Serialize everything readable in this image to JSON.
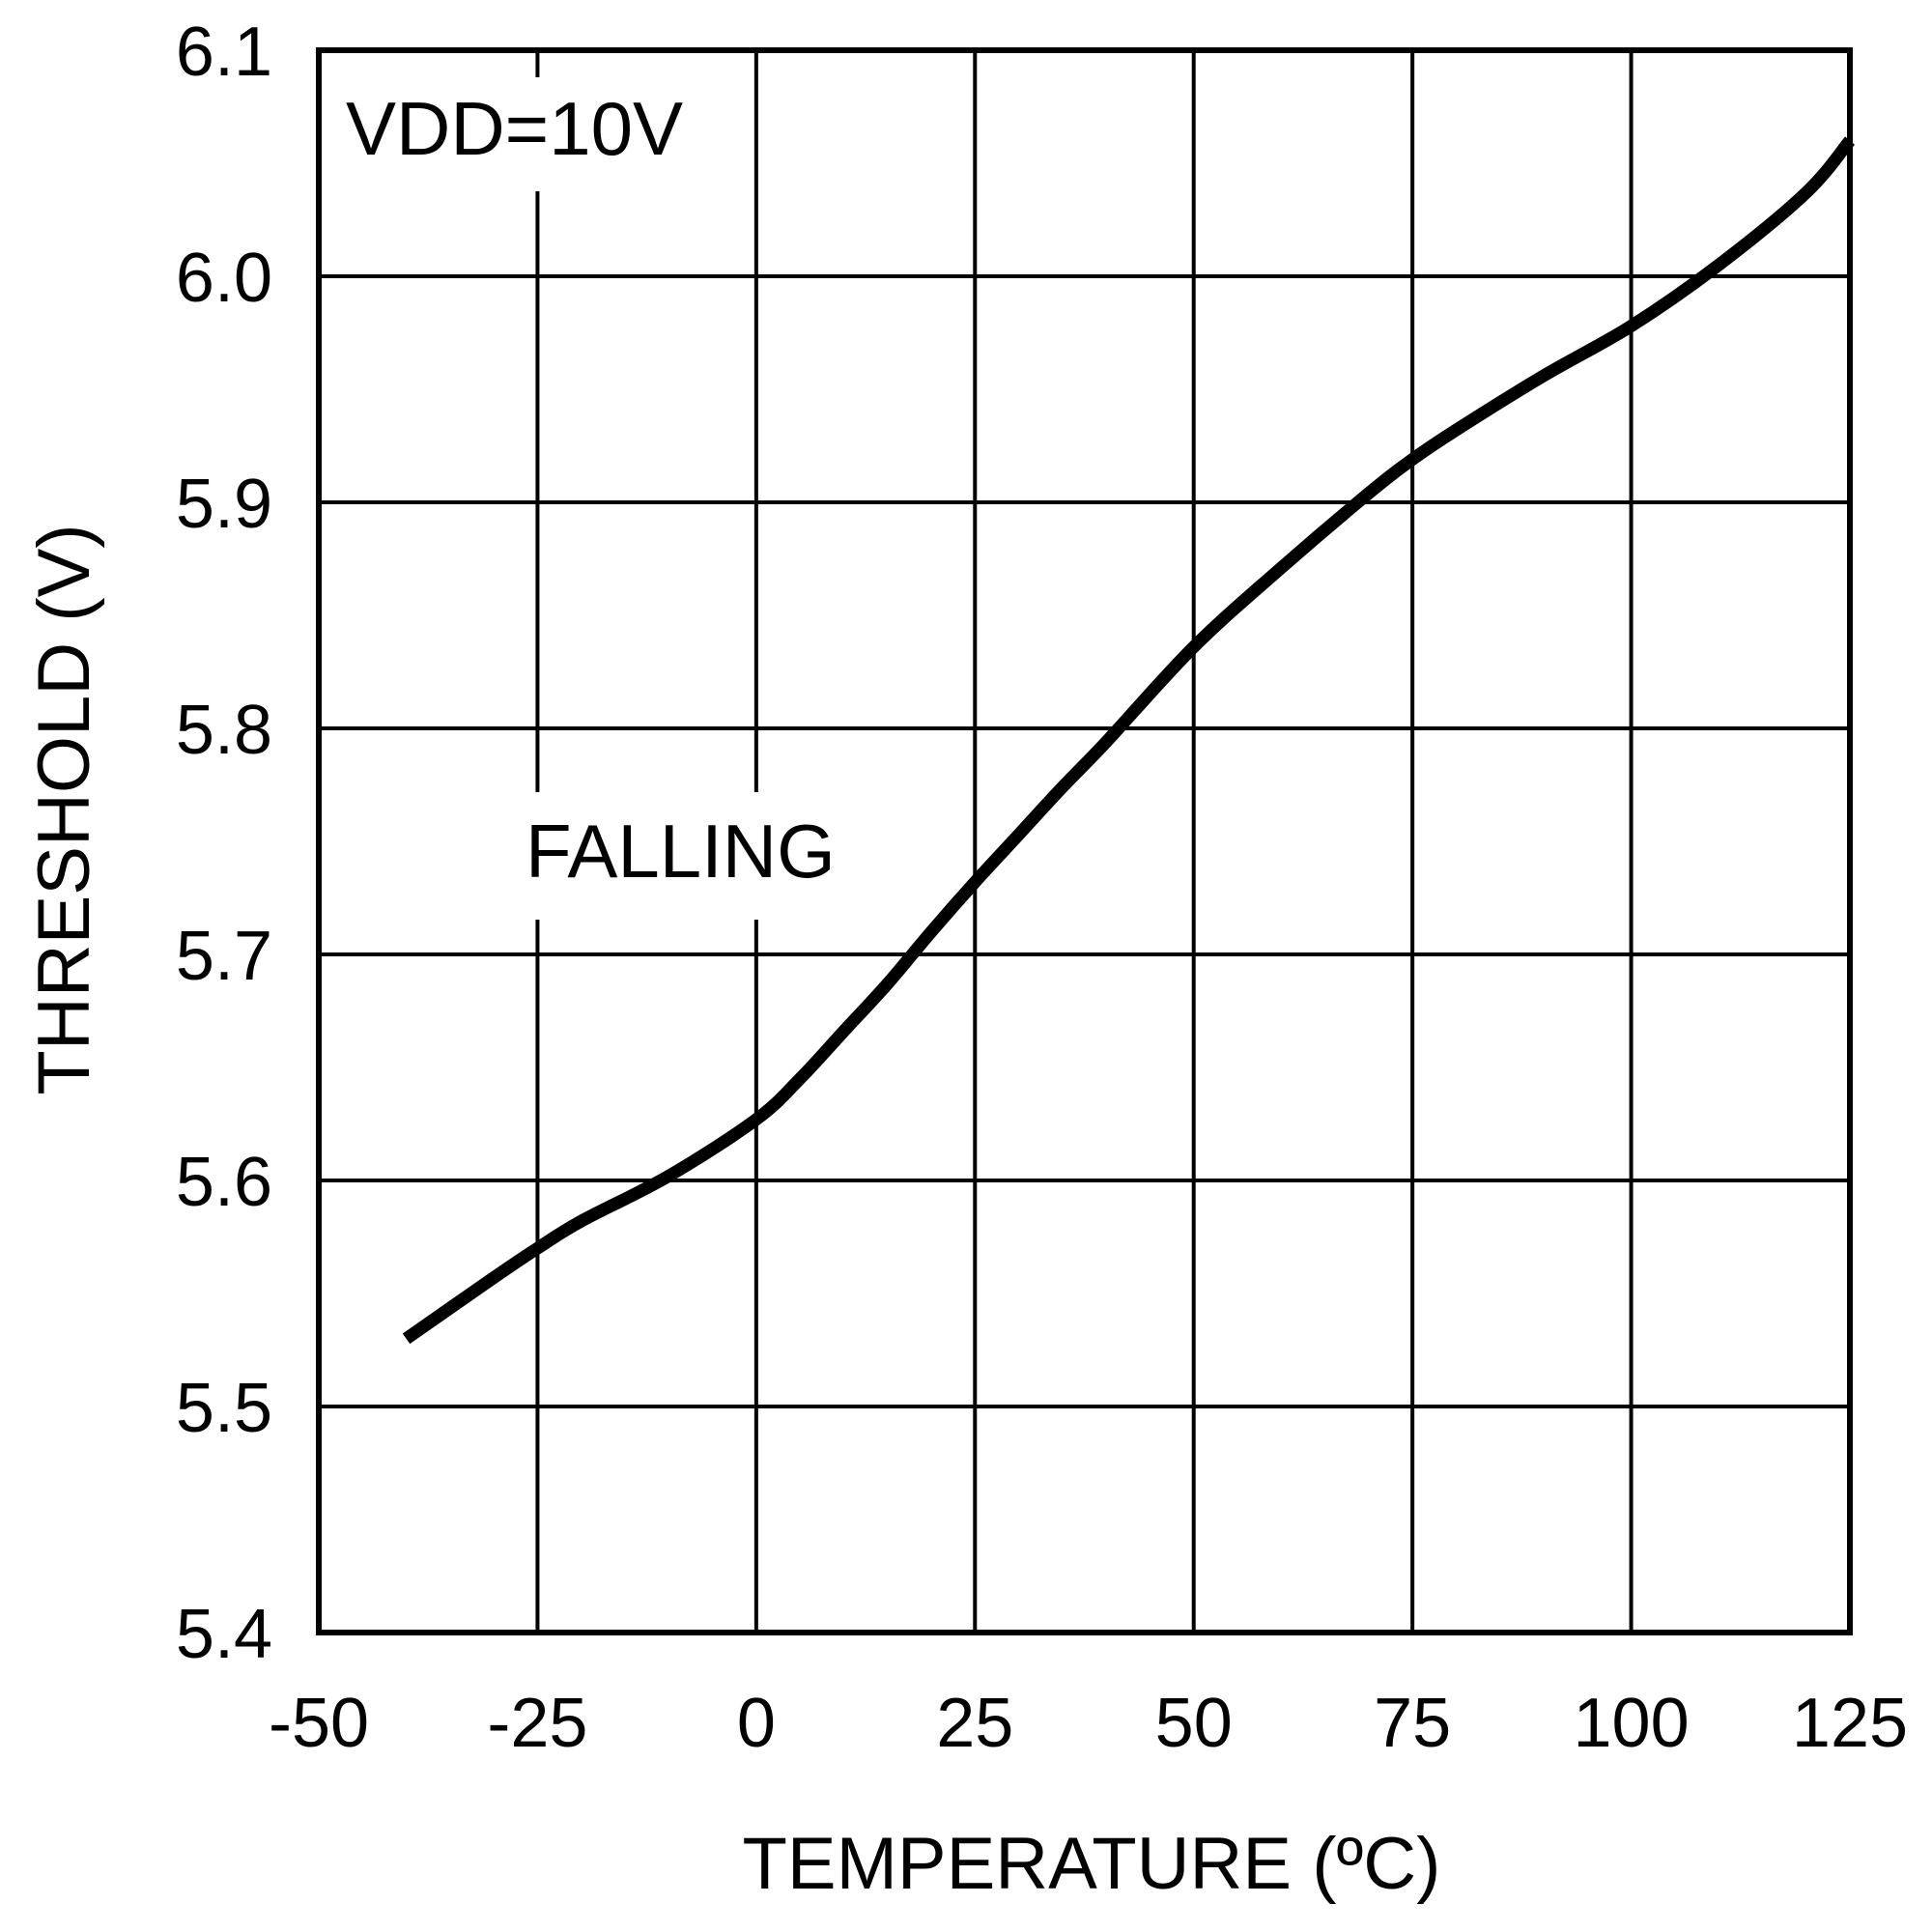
{
  "chart_data": {
    "type": "line",
    "title": "",
    "xlabel": "TEMPERATURE (ºC)",
    "ylabel": "THRESHOLD (V)",
    "xlim": [
      -50,
      125
    ],
    "ylim": [
      5.4,
      6.1
    ],
    "x_ticks": [
      -50,
      -25,
      0,
      25,
      50,
      75,
      100,
      125
    ],
    "y_ticks": [
      5.4,
      5.5,
      5.6,
      5.7,
      5.8,
      5.9,
      6.0,
      6.1
    ],
    "x_tick_labels": [
      "-50",
      "-25",
      "0",
      "25",
      "50",
      "75",
      "100",
      "125"
    ],
    "y_tick_labels": [
      "5.4",
      "5.5",
      "5.6",
      "5.7",
      "5.8",
      "5.9",
      "6.0",
      "6.1"
    ],
    "grid": true,
    "annotations": [
      "VDD=10V",
      "FALLING"
    ],
    "line_color": "#000000",
    "series": [
      {
        "x": [
          -40,
          -30,
          -25,
          -20,
          -10,
          0,
          5,
          10,
          15,
          20,
          25,
          30,
          35,
          40,
          50,
          60,
          70,
          75,
          80,
          90,
          100,
          110,
          120,
          125
        ],
        "y": [
          5.53,
          5.557,
          5.57,
          5.582,
          5.602,
          5.627,
          5.645,
          5.666,
          5.687,
          5.71,
          5.732,
          5.753,
          5.774,
          5.794,
          5.836,
          5.871,
          5.904,
          5.919,
          5.932,
          5.956,
          5.978,
          6.005,
          6.037,
          6.06
        ]
      }
    ]
  }
}
